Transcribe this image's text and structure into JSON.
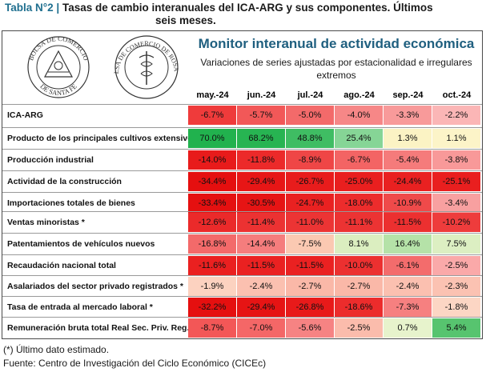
{
  "header": {
    "label": "Tabla N°2 |",
    "title_line1": "Tasas de cambio interanuales del ICA-ARG y sus componentes. Últimos",
    "title_line2": "seis meses."
  },
  "seals": {
    "left": {
      "top": "BOLSA DE COMERCIO",
      "bottom": "DE SANTA FE"
    },
    "right": {
      "top": "BOLSA DE COMERCIO DE ROSARIO"
    }
  },
  "monitor": {
    "title": "Monitor interanual de actividad económica",
    "subtitle_line1": "Variaciones de series ajustadas por estacionalidad e irregulares",
    "subtitle_line2": "extremos"
  },
  "months": [
    "may.-24",
    "jun.-24",
    "jul.-24",
    "ago.-24",
    "sep.-24",
    "oct.-24"
  ],
  "rows": [
    {
      "label": "ICA-ARG",
      "values": [
        "-6.7%",
        "-5.7%",
        "-5.0%",
        "-4.0%",
        "-3.3%",
        "-2.2%"
      ],
      "colors": [
        "#ef3b3b",
        "#f25858",
        "#f36a6a",
        "#f68787",
        "#f89a9a",
        "#fbb6b6"
      ]
    },
    {
      "label": "Producto de los principales cultivos extensivos",
      "values": [
        "70.0%",
        "68.2%",
        "48.8%",
        "25.4%",
        "1.3%",
        "1.1%"
      ],
      "colors": [
        "#21b24e",
        "#27b452",
        "#3fbd63",
        "#86d596",
        "#fbf3c4",
        "#fcf4c8"
      ]
    },
    {
      "label": "Producción industrial",
      "values": [
        "-14.0%",
        "-11.8%",
        "-8.9%",
        "-6.7%",
        "-5.4%",
        "-3.8%"
      ],
      "colors": [
        "#e81b1b",
        "#ec2a2a",
        "#ef4646",
        "#f36464",
        "#f57b7b",
        "#f89999"
      ]
    },
    {
      "label": "Actividad de la construcción",
      "values": [
        "-34.4%",
        "-29.4%",
        "-26.7%",
        "-25.0%",
        "-24.4%",
        "-25.1%"
      ],
      "colors": [
        "#e50f0f",
        "#e71616",
        "#e81c1c",
        "#e91f1f",
        "#e92121",
        "#e91f1f"
      ]
    },
    {
      "label": "Importaciones totales de bienes",
      "values": [
        "-33.4%",
        "-30.5%",
        "-24.7%",
        "-18.0%",
        "-10.9%",
        "-3.4%"
      ],
      "colors": [
        "#e51010",
        "#e61414",
        "#e92121",
        "#ec2c2c",
        "#ef4a4a",
        "#f8a0a0"
      ]
    },
    {
      "label": "Ventas minoristas *",
      "values": [
        "-12.6%",
        "-11.4%",
        "-11.0%",
        "-11.1%",
        "-11.5%",
        "-10.2%"
      ],
      "colors": [
        "#eb2a2a",
        "#ec3232",
        "#ec3434",
        "#ec3333",
        "#ec3030",
        "#ee3c3c"
      ]
    },
    {
      "label": "Patentamientos de vehículos nuevos",
      "values": [
        "-16.8%",
        "-14.4%",
        "-7.5%",
        "8.1%",
        "16.4%",
        "7.5%"
      ],
      "colors": [
        "#f36a6a",
        "#f57d7d",
        "#fbc9b2",
        "#dbeec0",
        "#b5e2a8",
        "#dcefc2"
      ]
    },
    {
      "label": "Recaudación nacional total",
      "values": [
        "-11.6%",
        "-11.5%",
        "-11.5%",
        "-10.0%",
        "-6.1%",
        "-2.5%"
      ],
      "colors": [
        "#ea2020",
        "#ea2121",
        "#ea2121",
        "#ec3030",
        "#f36c6c",
        "#faa9a9"
      ]
    },
    {
      "label": "Asalariados del sector privado registrados *",
      "values": [
        "-1.9%",
        "-2.4%",
        "-2.7%",
        "-2.7%",
        "-2.4%",
        "-2.3%"
      ],
      "colors": [
        "#fcd2c0",
        "#fbc0b0",
        "#fab8a8",
        "#fab8a8",
        "#fbc0b0",
        "#fbc2b2"
      ]
    },
    {
      "label": "Tasa de entrada al mercado laboral *",
      "values": [
        "-32.2%",
        "-29.4%",
        "-26.8%",
        "-18.6%",
        "-7.3%",
        "-1.8%"
      ],
      "colors": [
        "#e50f0f",
        "#e61414",
        "#e81a1a",
        "#ec2c2c",
        "#f68080",
        "#fcd6c4"
      ]
    },
    {
      "label": "Remuneración bruta total Real Sec. Priv. Reg.*",
      "values": [
        "-8.7%",
        "-7.0%",
        "-5.6%",
        "-2.5%",
        "0.7%",
        "5.4%"
      ],
      "colors": [
        "#f35757",
        "#f46767",
        "#f68383",
        "#fbbcac",
        "#e7f3cc",
        "#57c46f"
      ]
    }
  ],
  "footer": {
    "note": "(*) Último dato estimado.",
    "source": "Fuente: Centro de Investigación del Ciclo Económico (CICEc)"
  }
}
